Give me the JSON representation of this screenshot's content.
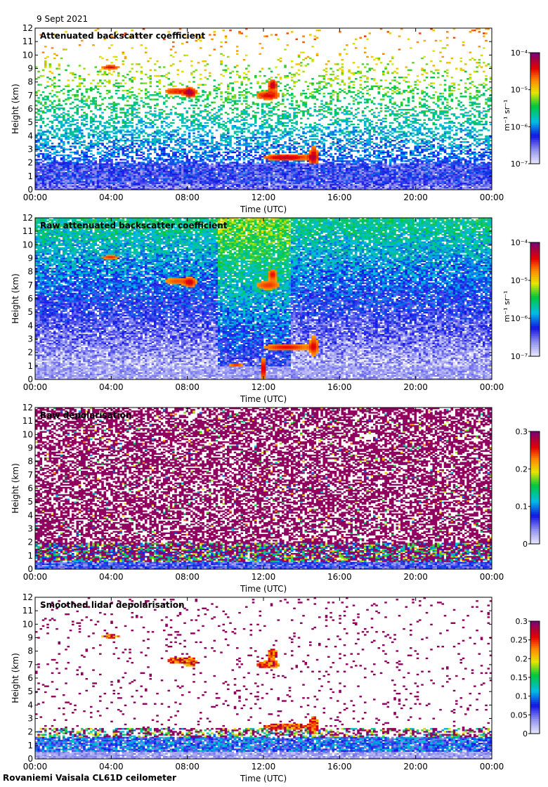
{
  "date": "9 Sept 2021",
  "footer": "Rovaniemi Vaisala CL61D ceilometer",
  "chart_data": [
    {
      "type": "heatmap",
      "title": "Attenuated backscatter coefficient",
      "xlabel": "Time (UTC)",
      "ylabel": "Height (km)",
      "xticks": [
        "00:00",
        "04:00",
        "08:00",
        "12:00",
        "16:00",
        "20:00",
        "00:00"
      ],
      "yticks": [
        "0",
        "1",
        "2",
        "3",
        "4",
        "5",
        "6",
        "7",
        "8",
        "9",
        "10",
        "11",
        "12"
      ],
      "ylim": [
        0,
        12
      ],
      "colorbar": {
        "scale": "log",
        "units_label": "m⁻¹ sr⁻¹",
        "ticks": [
          "10⁻⁴",
          "10⁻⁵",
          "10⁻⁶",
          "10⁻⁷"
        ],
        "range": [
          1e-07,
          0.0001
        ]
      }
    },
    {
      "type": "heatmap",
      "title": "Raw attenuated backscatter coefficient",
      "xlabel": "Time (UTC)",
      "ylabel": "Height (km)",
      "xticks": [
        "00:00",
        "04:00",
        "08:00",
        "12:00",
        "16:00",
        "20:00",
        "00:00"
      ],
      "yticks": [
        "0",
        "1",
        "2",
        "3",
        "4",
        "5",
        "6",
        "7",
        "8",
        "9",
        "10",
        "11",
        "12"
      ],
      "ylim": [
        0,
        12
      ],
      "colorbar": {
        "scale": "log",
        "units_label": "m⁻¹ sr⁻¹",
        "ticks": [
          "10⁻⁴",
          "10⁻⁵",
          "10⁻⁶",
          "10⁻⁷"
        ],
        "range": [
          1e-07,
          0.0001
        ]
      }
    },
    {
      "type": "heatmap",
      "title": "Raw depolarisation",
      "xlabel": "Time (UTC)",
      "ylabel": "Height (km)",
      "xticks": [
        "00:00",
        "04:00",
        "08:00",
        "12:00",
        "16:00",
        "20:00",
        "00:00"
      ],
      "yticks": [
        "0",
        "1",
        "2",
        "3",
        "4",
        "5",
        "6",
        "7",
        "8",
        "9",
        "10",
        "11",
        "12"
      ],
      "ylim": [
        0,
        12
      ],
      "colorbar": {
        "scale": "linear",
        "units_label": "",
        "ticks": [
          "0.3",
          "0.2",
          "0.1",
          "0"
        ],
        "range": [
          0,
          0.3
        ]
      }
    },
    {
      "type": "heatmap",
      "title": "Smoothed lidar depolarisation",
      "xlabel": "Time (UTC)",
      "ylabel": "Height (km)",
      "xticks": [
        "00:00",
        "04:00",
        "08:00",
        "12:00",
        "16:00",
        "20:00",
        "00:00"
      ],
      "yticks": [
        "0",
        "1",
        "2",
        "3",
        "4",
        "5",
        "6",
        "7",
        "8",
        "9",
        "10",
        "11",
        "12"
      ],
      "ylim": [
        0,
        12
      ],
      "colorbar": {
        "scale": "linear",
        "units_label": "",
        "ticks": [
          "0.3",
          "0.25",
          "0.2",
          "0.15",
          "0.1",
          "0.05",
          "0"
        ],
        "range": [
          0,
          0.3
        ]
      }
    }
  ]
}
